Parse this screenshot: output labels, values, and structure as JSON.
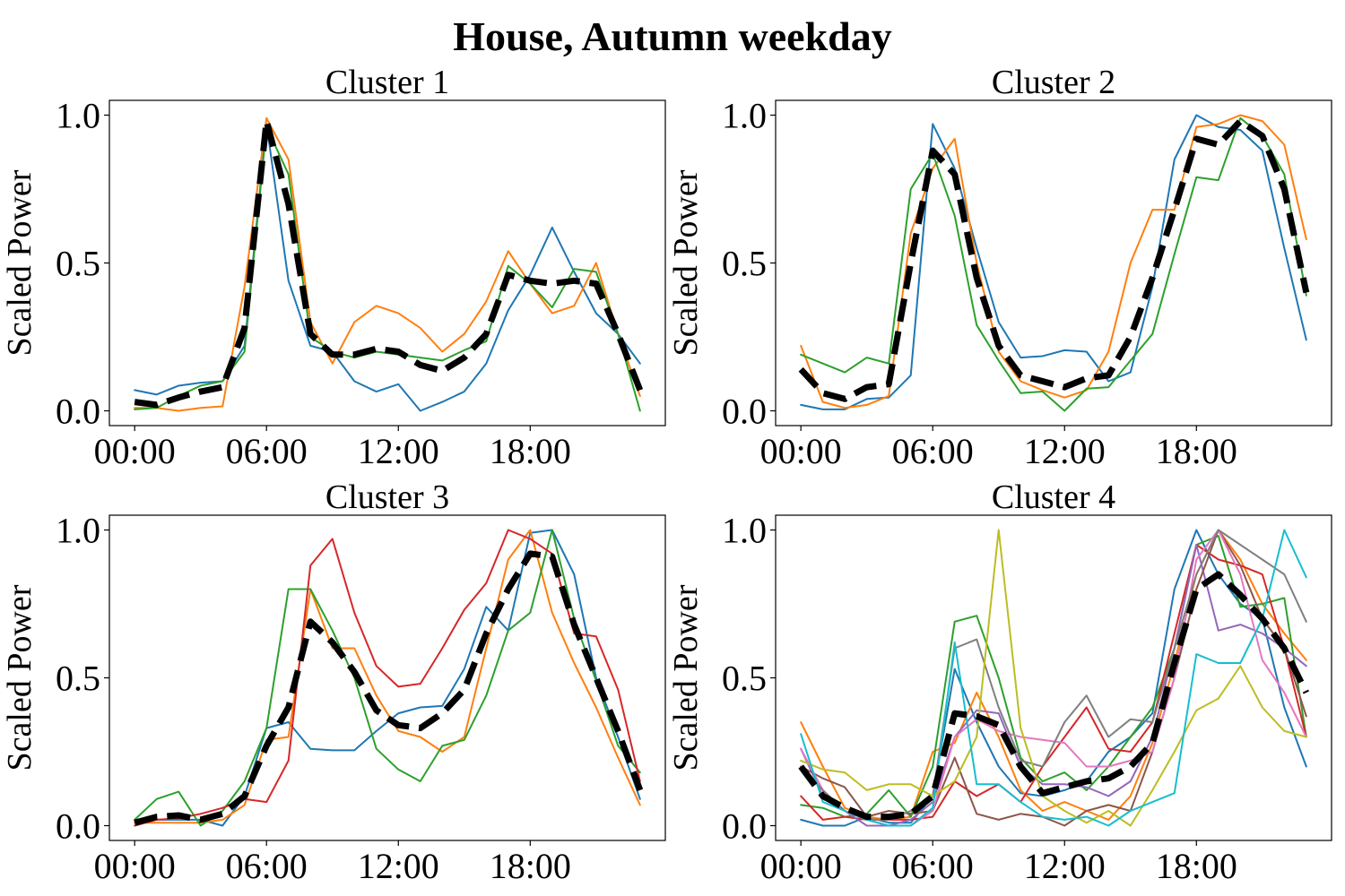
{
  "figure": {
    "title": "House, Autumn weekday"
  },
  "chart_data": [
    {
      "type": "line",
      "title": "Cluster 1",
      "xlabel": "",
      "ylabel": "Scaled Power",
      "xlim": [
        -1.15,
        24.15
      ],
      "ylim": [
        -0.05,
        1.05
      ],
      "xticks": [
        0,
        6,
        12,
        18
      ],
      "xtick_labels": [
        "00:00",
        "06:00",
        "12:00",
        "18:00"
      ],
      "yticks": [
        0,
        0.5,
        1
      ],
      "ytick_labels": [
        "0.0",
        "0.5",
        "1.0"
      ],
      "grid": false,
      "x": [
        0,
        1,
        2,
        3,
        4,
        5,
        6,
        7,
        8,
        9,
        10,
        11,
        12,
        13,
        14,
        15,
        16,
        17,
        18,
        19,
        20,
        21,
        22,
        23
      ],
      "series": [
        {
          "color": "#1f77b4",
          "values": [
            0.07,
            0.055,
            0.085,
            0.095,
            0.1,
            0.22,
            0.97,
            0.44,
            0.22,
            0.2,
            0.1,
            0.065,
            0.09,
            0.0,
            0.03,
            0.065,
            0.16,
            0.34,
            0.46,
            0.62,
            0.47,
            0.33,
            0.26,
            0.16
          ]
        },
        {
          "color": "#ff7f0e",
          "values": [
            0.01,
            0.01,
            0.0,
            0.01,
            0.015,
            0.42,
            0.99,
            0.85,
            0.3,
            0.16,
            0.3,
            0.355,
            0.33,
            0.28,
            0.2,
            0.26,
            0.37,
            0.54,
            0.43,
            0.33,
            0.355,
            0.5,
            0.26,
            0.05
          ]
        },
        {
          "color": "#2ca02c",
          "values": [
            0.005,
            0.01,
            0.05,
            0.085,
            0.1,
            0.2,
            0.96,
            0.8,
            0.25,
            0.2,
            0.18,
            0.2,
            0.19,
            0.18,
            0.17,
            0.205,
            0.235,
            0.49,
            0.43,
            0.35,
            0.48,
            0.47,
            0.26,
            0.0
          ]
        },
        {
          "color": "#000000",
          "dashed": true,
          "values": [
            0.03,
            0.02,
            0.045,
            0.065,
            0.08,
            0.28,
            0.98,
            0.7,
            0.26,
            0.19,
            0.19,
            0.21,
            0.2,
            0.155,
            0.135,
            0.18,
            0.26,
            0.46,
            0.44,
            0.43,
            0.44,
            0.43,
            0.26,
            0.07
          ]
        }
      ]
    },
    {
      "type": "line",
      "title": "Cluster 2",
      "xlabel": "",
      "ylabel": "Scaled Power",
      "xlim": [
        -1.15,
        24.15
      ],
      "ylim": [
        -0.05,
        1.05
      ],
      "xticks": [
        0,
        6,
        12,
        18
      ],
      "xtick_labels": [
        "00:00",
        "06:00",
        "12:00",
        "18:00"
      ],
      "yticks": [
        0,
        0.5,
        1
      ],
      "ytick_labels": [
        "0.0",
        "0.5",
        "1.0"
      ],
      "grid": false,
      "x": [
        0,
        1,
        2,
        3,
        4,
        5,
        6,
        7,
        8,
        9,
        10,
        11,
        12,
        13,
        14,
        15,
        16,
        17,
        18,
        19,
        20,
        21,
        22,
        23
      ],
      "series": [
        {
          "color": "#1f77b4",
          "values": [
            0.02,
            0.005,
            0.005,
            0.04,
            0.045,
            0.12,
            0.97,
            0.82,
            0.55,
            0.3,
            0.18,
            0.185,
            0.205,
            0.2,
            0.1,
            0.13,
            0.42,
            0.85,
            1.0,
            0.96,
            0.95,
            0.88,
            0.55,
            0.24
          ]
        },
        {
          "color": "#ff7f0e",
          "values": [
            0.22,
            0.03,
            0.01,
            0.02,
            0.05,
            0.6,
            0.82,
            0.92,
            0.5,
            0.2,
            0.1,
            0.07,
            0.045,
            0.07,
            0.2,
            0.5,
            0.68,
            0.68,
            0.96,
            0.97,
            1.0,
            0.98,
            0.9,
            0.58
          ]
        },
        {
          "color": "#2ca02c",
          "values": [
            0.19,
            0.16,
            0.13,
            0.18,
            0.16,
            0.75,
            0.87,
            0.66,
            0.29,
            0.17,
            0.06,
            0.065,
            0.0,
            0.075,
            0.08,
            0.17,
            0.26,
            0.53,
            0.79,
            0.78,
            0.99,
            0.93,
            0.8,
            0.39
          ]
        },
        {
          "color": "#000000",
          "dashed": true,
          "values": [
            0.14,
            0.06,
            0.04,
            0.08,
            0.09,
            0.5,
            0.88,
            0.8,
            0.45,
            0.22,
            0.12,
            0.1,
            0.08,
            0.11,
            0.12,
            0.25,
            0.45,
            0.68,
            0.92,
            0.9,
            0.98,
            0.93,
            0.75,
            0.4
          ]
        }
      ]
    },
    {
      "type": "line",
      "title": "Cluster 3",
      "xlabel": "",
      "ylabel": "Scaled Power",
      "xlim": [
        -1.15,
        24.15
      ],
      "ylim": [
        -0.05,
        1.05
      ],
      "xticks": [
        0,
        6,
        12,
        18
      ],
      "xtick_labels": [
        "00:00",
        "06:00",
        "12:00",
        "18:00"
      ],
      "yticks": [
        0,
        0.5,
        1
      ],
      "ytick_labels": [
        "0.0",
        "0.5",
        "1.0"
      ],
      "grid": false,
      "x": [
        0,
        1,
        2,
        3,
        4,
        5,
        6,
        7,
        8,
        9,
        10,
        11,
        12,
        13,
        14,
        15,
        16,
        17,
        18,
        19,
        20,
        21,
        22,
        23
      ],
      "series": [
        {
          "color": "#1f77b4",
          "values": [
            0.02,
            0.02,
            0.02,
            0.02,
            0.0,
            0.1,
            0.33,
            0.35,
            0.26,
            0.255,
            0.255,
            0.32,
            0.38,
            0.4,
            0.405,
            0.53,
            0.74,
            0.66,
            0.99,
            1.0,
            0.85,
            0.5,
            0.3,
            0.09
          ]
        },
        {
          "color": "#ff7f0e",
          "values": [
            0.01,
            0.01,
            0.01,
            0.01,
            0.02,
            0.07,
            0.29,
            0.3,
            0.8,
            0.6,
            0.6,
            0.44,
            0.32,
            0.3,
            0.25,
            0.3,
            0.6,
            0.9,
            1.0,
            0.72,
            0.55,
            0.4,
            0.23,
            0.07
          ]
        },
        {
          "color": "#2ca02c",
          "values": [
            0.02,
            0.09,
            0.115,
            0.0,
            0.05,
            0.15,
            0.33,
            0.8,
            0.8,
            0.66,
            0.5,
            0.26,
            0.19,
            0.15,
            0.27,
            0.29,
            0.44,
            0.66,
            0.72,
            1.0,
            0.7,
            0.49,
            0.27,
            0.18
          ]
        },
        {
          "color": "#d62728",
          "values": [
            0.0,
            0.02,
            0.025,
            0.04,
            0.06,
            0.09,
            0.08,
            0.22,
            0.88,
            0.97,
            0.72,
            0.54,
            0.47,
            0.48,
            0.6,
            0.73,
            0.82,
            1.0,
            0.97,
            0.92,
            0.65,
            0.64,
            0.46,
            0.15
          ]
        },
        {
          "color": "#000000",
          "dashed": true,
          "values": [
            0.01,
            0.03,
            0.035,
            0.02,
            0.04,
            0.1,
            0.27,
            0.4,
            0.69,
            0.62,
            0.52,
            0.39,
            0.34,
            0.33,
            0.38,
            0.46,
            0.65,
            0.8,
            0.92,
            0.91,
            0.68,
            0.5,
            0.32,
            0.12
          ]
        }
      ]
    },
    {
      "type": "line",
      "title": "Cluster 4",
      "xlabel": "",
      "ylabel": "Scaled Power",
      "xlim": [
        -1.15,
        24.15
      ],
      "ylim": [
        -0.05,
        1.05
      ],
      "xticks": [
        0,
        6,
        12,
        18
      ],
      "xtick_labels": [
        "00:00",
        "06:00",
        "12:00",
        "18:00"
      ],
      "yticks": [
        0,
        0.5,
        1
      ],
      "ytick_labels": [
        "0.0",
        "0.5",
        "1.0"
      ],
      "grid": false,
      "x": [
        0,
        1,
        2,
        3,
        4,
        5,
        6,
        7,
        8,
        9,
        10,
        11,
        12,
        13,
        14,
        15,
        16,
        17,
        18,
        19,
        20,
        21,
        22,
        23
      ],
      "series": [
        {
          "color": "#1f77b4",
          "values": [
            0.02,
            0.0,
            0.0,
            0.03,
            0.01,
            0.01,
            0.1,
            0.53,
            0.35,
            0.2,
            0.11,
            0.1,
            0.12,
            0.15,
            0.25,
            0.3,
            0.38,
            0.8,
            1.0,
            0.85,
            0.75,
            0.7,
            0.4,
            0.2
          ]
        },
        {
          "color": "#ff7f0e",
          "values": [
            0.35,
            0.2,
            0.06,
            0.03,
            0.02,
            0.03,
            0.25,
            0.28,
            0.45,
            0.3,
            0.12,
            0.05,
            0.08,
            0.05,
            0.02,
            0.1,
            0.28,
            0.55,
            0.85,
            1.0,
            0.9,
            0.75,
            0.65,
            0.56
          ]
        },
        {
          "color": "#2ca02c",
          "values": [
            0.07,
            0.06,
            0.03,
            0.04,
            0.12,
            0.03,
            0.2,
            0.69,
            0.71,
            0.5,
            0.23,
            0.15,
            0.18,
            0.12,
            0.2,
            0.3,
            0.4,
            0.6,
            0.95,
            0.98,
            0.74,
            0.75,
            0.77,
            0.3
          ]
        },
        {
          "color": "#d62728",
          "values": [
            0.1,
            0.02,
            0.03,
            0.02,
            0.02,
            0.02,
            0.03,
            0.15,
            0.1,
            0.14,
            0.08,
            0.2,
            0.3,
            0.4,
            0.26,
            0.25,
            0.35,
            0.65,
            0.95,
            0.9,
            0.88,
            0.85,
            0.6,
            0.3
          ]
        },
        {
          "color": "#9467bd",
          "values": [
            0.26,
            0.1,
            0.05,
            0.0,
            0.0,
            0.02,
            0.08,
            0.3,
            0.39,
            0.38,
            0.2,
            0.14,
            0.14,
            0.13,
            0.1,
            0.15,
            0.3,
            0.6,
            0.95,
            0.66,
            0.68,
            0.65,
            0.6,
            0.54
          ]
        },
        {
          "color": "#8c564b",
          "values": [
            0.2,
            0.16,
            0.13,
            0.03,
            0.05,
            0.04,
            0.05,
            0.23,
            0.04,
            0.02,
            0.04,
            0.03,
            0.0,
            0.05,
            0.07,
            0.05,
            0.25,
            0.5,
            0.8,
            1.0,
            0.88,
            0.7,
            0.6,
            0.37
          ]
        },
        {
          "color": "#e377c2",
          "values": [
            0.26,
            0.12,
            0.05,
            0.02,
            0.0,
            0.0,
            0.05,
            0.3,
            0.36,
            0.32,
            0.3,
            0.29,
            0.28,
            0.2,
            0.2,
            0.22,
            0.25,
            0.5,
            0.9,
            1.0,
            0.85,
            0.56,
            0.45,
            0.3
          ]
        },
        {
          "color": "#7f7f7f",
          "values": [
            0.2,
            0.12,
            0.05,
            0.02,
            0.02,
            0.05,
            0.1,
            0.6,
            0.63,
            0.4,
            0.22,
            0.2,
            0.35,
            0.44,
            0.3,
            0.36,
            0.35,
            0.6,
            0.85,
            1.0,
            0.95,
            0.9,
            0.85,
            0.69
          ]
        },
        {
          "color": "#bcbd22",
          "values": [
            0.22,
            0.19,
            0.18,
            0.12,
            0.14,
            0.14,
            0.1,
            0.15,
            0.3,
            1.0,
            0.33,
            0.1,
            0.05,
            0.01,
            0.05,
            0.0,
            0.12,
            0.25,
            0.39,
            0.43,
            0.54,
            0.4,
            0.32,
            0.3
          ]
        },
        {
          "color": "#17becf",
          "values": [
            0.31,
            0.08,
            0.05,
            0.02,
            0.0,
            0.0,
            0.06,
            0.62,
            0.14,
            0.14,
            0.08,
            0.03,
            0.02,
            0.03,
            0.0,
            0.05,
            0.08,
            0.11,
            0.58,
            0.55,
            0.55,
            0.7,
            1.0,
            0.84
          ]
        },
        {
          "color": "#000000",
          "dashed": true,
          "values": [
            0.2,
            0.1,
            0.06,
            0.03,
            0.03,
            0.04,
            0.1,
            0.38,
            0.37,
            0.34,
            0.2,
            0.11,
            0.13,
            0.15,
            0.16,
            0.2,
            0.28,
            0.55,
            0.8,
            0.85,
            0.78,
            0.7,
            0.6,
            0.45
          ]
        }
      ]
    }
  ]
}
